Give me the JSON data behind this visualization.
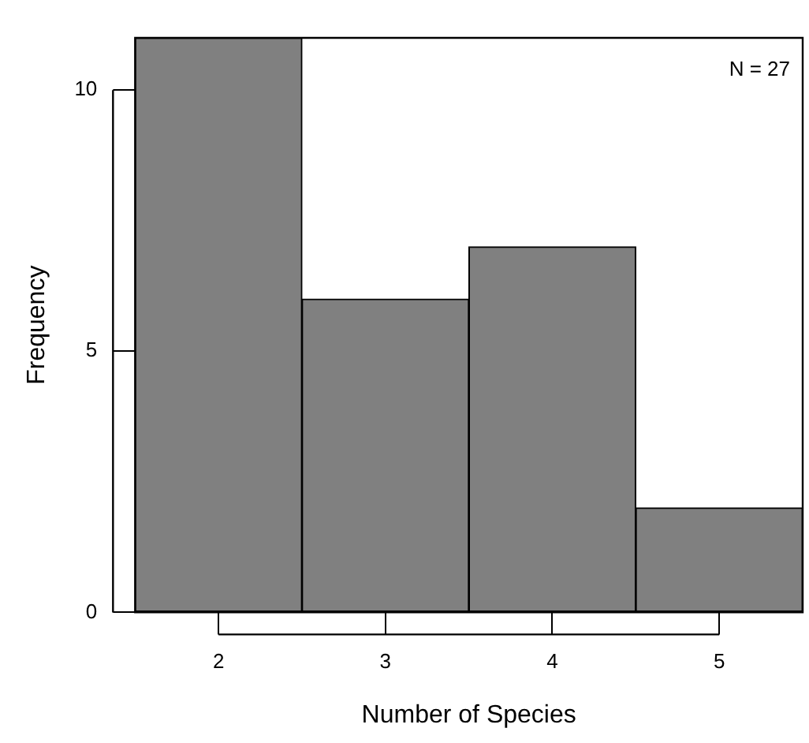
{
  "chart_data": {
    "type": "histogram",
    "xlabel": "Number of Species",
    "ylabel": "Frequency",
    "bins": [
      1.5,
      2.5,
      3.5,
      4.5,
      5.5
    ],
    "values": [
      11,
      6,
      7,
      2
    ],
    "color": "#808080",
    "xlim": [
      1.5,
      5.5
    ],
    "ylim": [
      0,
      11
    ],
    "xticks": [
      2,
      3,
      4,
      5
    ],
    "yticks": [
      0,
      5,
      10
    ],
    "annotations": [
      "N = 27"
    ]
  }
}
